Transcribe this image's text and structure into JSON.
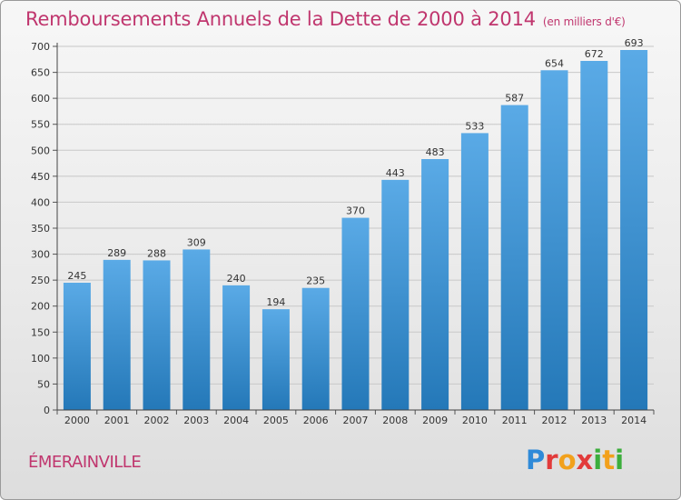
{
  "header": {
    "title": "Remboursements Annuels de la Dette de 2000 à 2014",
    "subtitle": "(en milliers d'€)"
  },
  "footer": {
    "commune": "ÉMERAINVILLE",
    "logo_letters": [
      "P",
      "r",
      "o",
      "x",
      "i",
      "t",
      "i"
    ],
    "logo_colors": [
      "#2f8ad8",
      "#e23b3b",
      "#f2a11c",
      "#e23b3b",
      "#3cae3c",
      "#f2a11c",
      "#3cae3c"
    ]
  },
  "chart_data": {
    "type": "bar",
    "title": "Remboursements Annuels de la Dette de 2000 à 2014",
    "xlabel": "",
    "ylabel": "",
    "categories": [
      "2000",
      "2001",
      "2002",
      "2003",
      "2004",
      "2005",
      "2006",
      "2007",
      "2008",
      "2009",
      "2010",
      "2011",
      "2012",
      "2013",
      "2014"
    ],
    "values": [
      245,
      289,
      288,
      309,
      240,
      194,
      235,
      370,
      443,
      483,
      533,
      587,
      654,
      672,
      693
    ],
    "ylim": [
      0,
      700
    ],
    "yticks": [
      0,
      50,
      100,
      150,
      200,
      250,
      300,
      350,
      400,
      450,
      500,
      550,
      600,
      650,
      700
    ],
    "grid": true,
    "bar_color_top": "#5aaae6",
    "bar_color_bottom": "#2478b8"
  }
}
